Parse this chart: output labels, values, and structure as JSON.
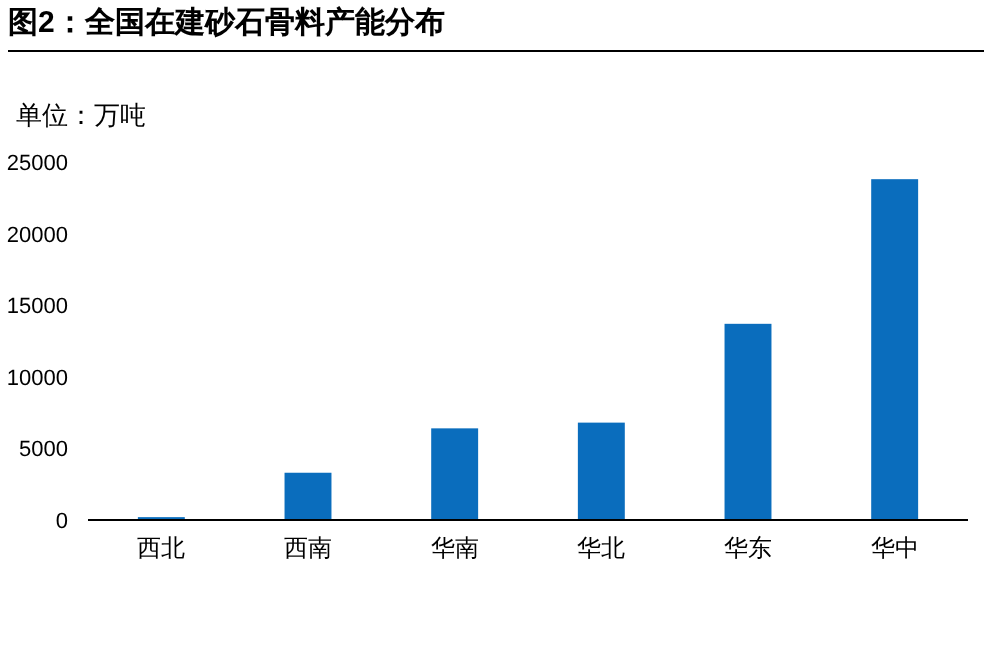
{
  "chart_data": {
    "type": "bar",
    "title": "图2：全国在建砂石骨料产能分布",
    "ylabel": "单位：万吨",
    "categories": [
      "西北",
      "西南",
      "华南",
      "华北",
      "华东",
      "华中"
    ],
    "values": [
      200,
      3300,
      6400,
      6800,
      13700,
      23800
    ],
    "color": "#0a6dbd",
    "ylim": [
      0,
      25000
    ],
    "yticks": [
      0,
      5000,
      10000,
      15000,
      20000,
      25000
    ]
  }
}
